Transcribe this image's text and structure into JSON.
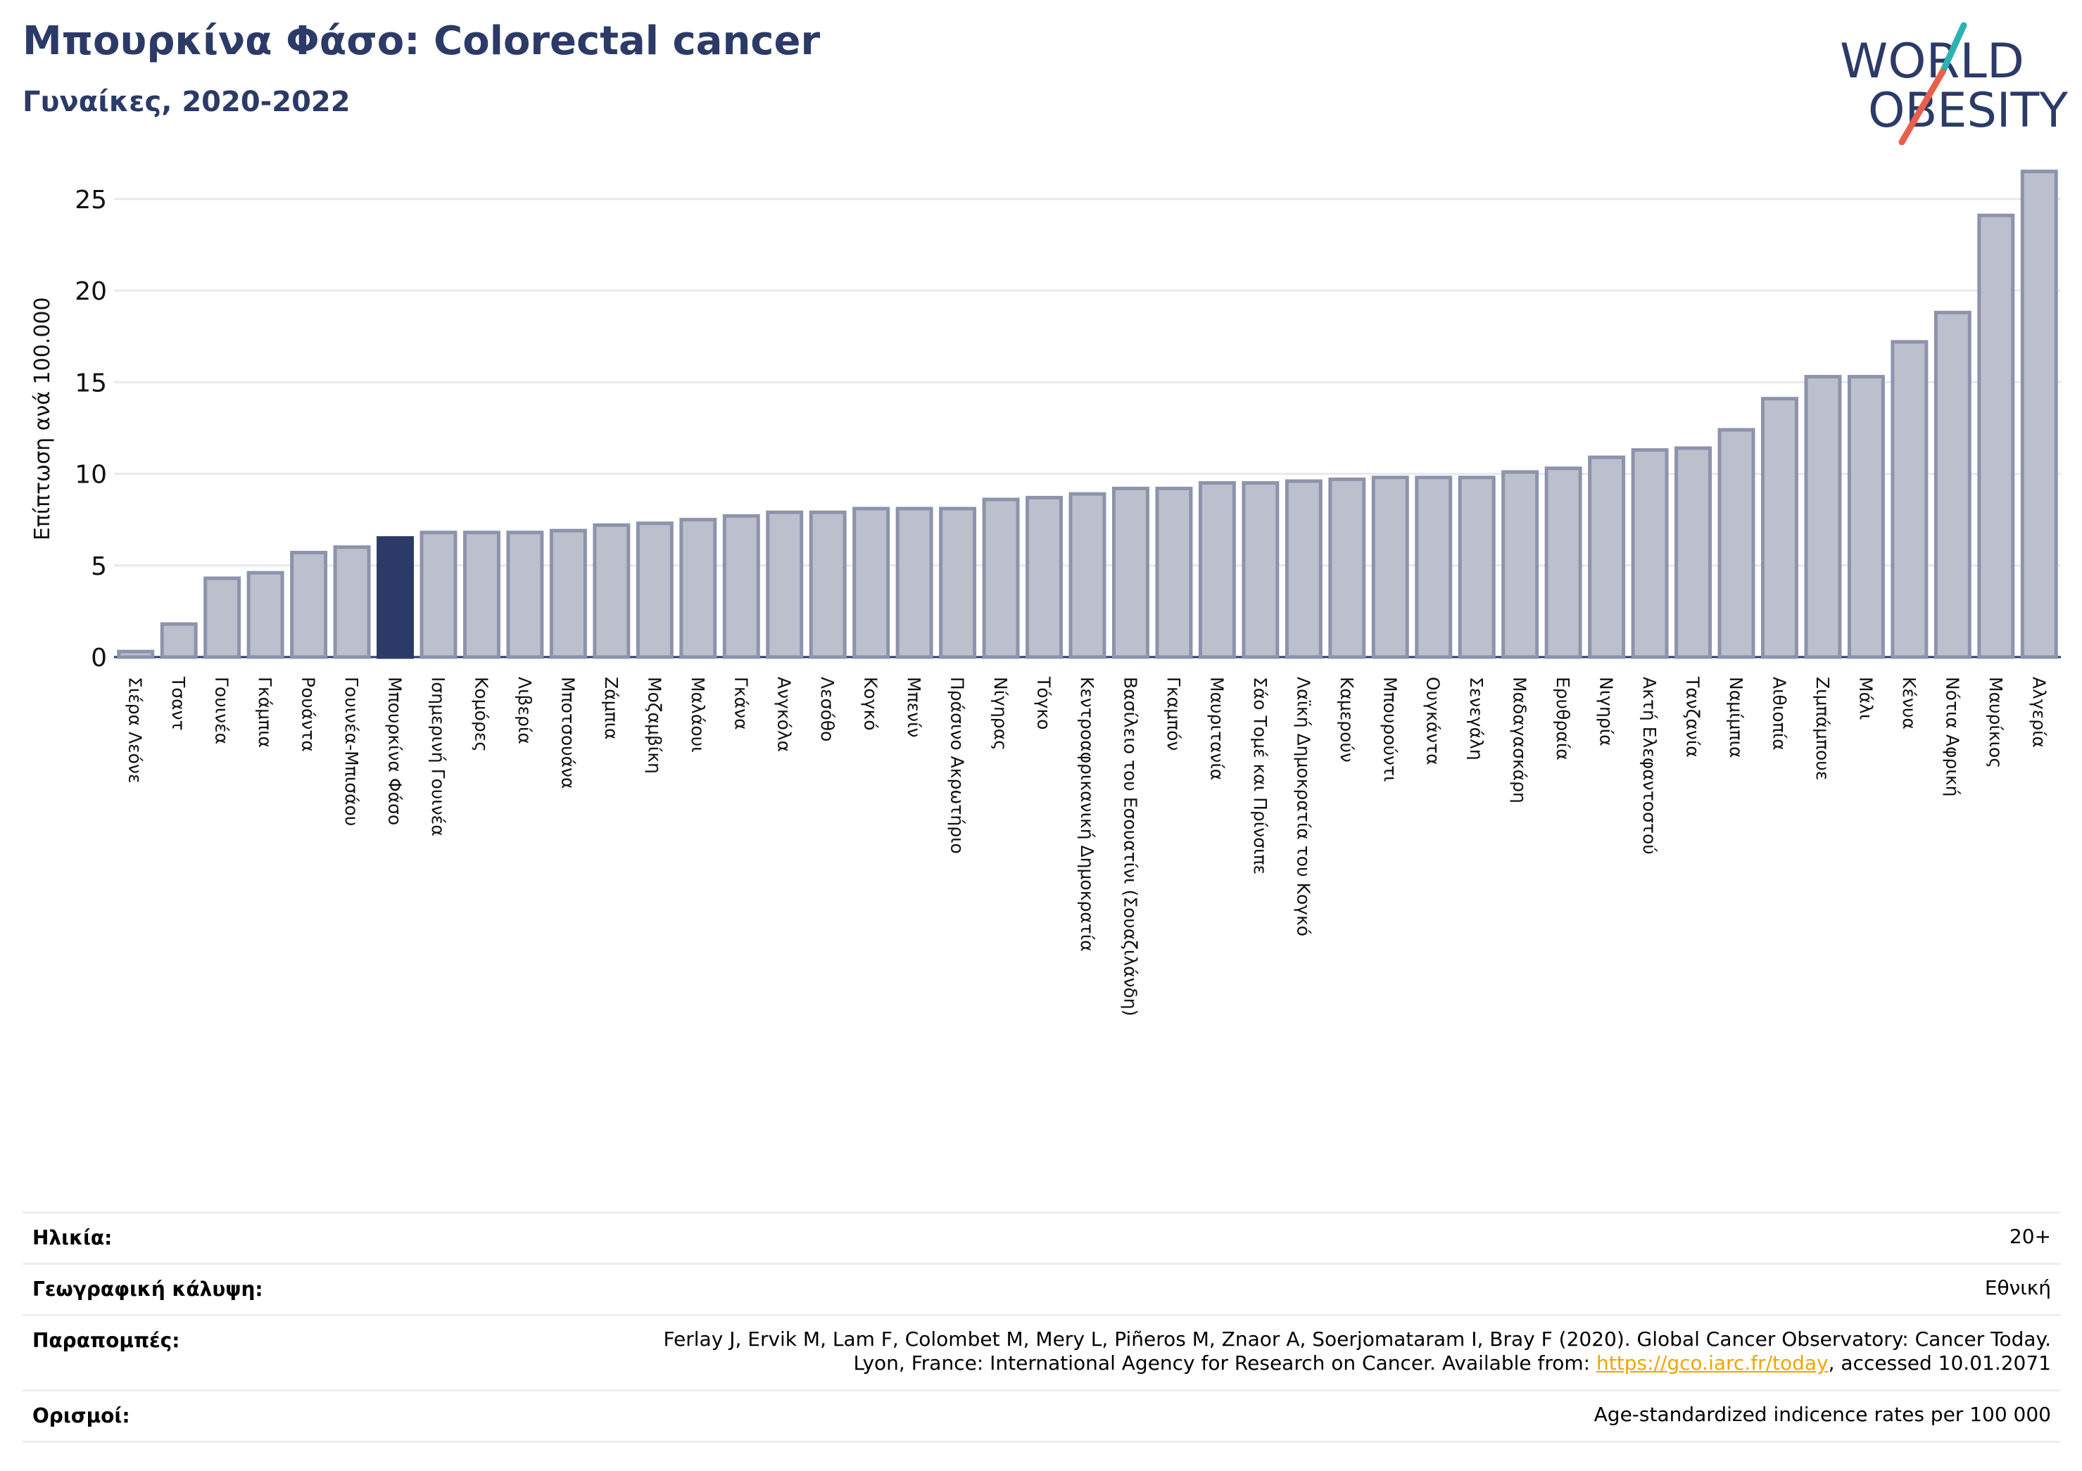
{
  "header": {
    "title": "Μπουρκίνα Φάσο: Colorectal cancer",
    "subtitle": "Γυναίκες, 2020-2022",
    "logo_line1": "WORLD",
    "logo_line2": "OBESITY"
  },
  "chart_data": {
    "type": "bar",
    "ylabel": "Επίπτωση ανά 100.000",
    "ylim": [
      0,
      27
    ],
    "yticks": [
      0,
      5,
      10,
      15,
      20,
      25
    ],
    "grid": true,
    "highlight": "Μπουρκίνα Φάσο",
    "categories": [
      "Σιέρα Λεόνε",
      "Τσαντ",
      "Γουινέα",
      "Γκάμπια",
      "Ρουάντα",
      "Γουινέα-Μπισάου",
      "Μπουρκίνα Φάσο",
      "Ισημερινή Γουινέα",
      "Κομόρες",
      "Λιβερία",
      "Μποτσουάνα",
      "Ζάμπια",
      "Μοζαμβίκη",
      "Μαλάουι",
      "Γκάνα",
      "Ανγκόλα",
      "Λεσόθο",
      "Κογκό",
      "Μπενίν",
      "Πράσινο Ακρωτήριο",
      "Νίγηρας",
      "Τόγκο",
      "Κεντροαφρικανική Δημοκρατία",
      "Βασίλειο του Εσουατίνι (Σουαζιλάνδη)",
      "Γκαμπόν",
      "Μαυριτανία",
      "Σάο Τομέ και Πρίνσιπε",
      "Λαϊκή Δημοκρατία του Κογκό",
      "Καμερούν",
      "Μπουρούντι",
      "Ουγκάντα",
      "Σενεγάλη",
      "Μαδαγασκάρη",
      "Ερυθραία",
      "Νιγηρία",
      "Ακτή Ελεφαντοστού",
      "Τανζανία",
      "Ναμίμπια",
      "Αιθιοπία",
      "Ζιμπάμπουε",
      "Μάλι",
      "Κένυα",
      "Νότια Αφρική",
      "Μαυρίκιος",
      "Αλγερία"
    ],
    "values": [
      0.3,
      1.8,
      4.3,
      4.6,
      5.7,
      6.0,
      6.5,
      6.8,
      6.8,
      6.8,
      6.9,
      7.2,
      7.3,
      7.5,
      7.7,
      7.9,
      7.9,
      8.1,
      8.1,
      8.1,
      8.6,
      8.7,
      8.9,
      9.2,
      9.2,
      9.5,
      9.5,
      9.6,
      9.7,
      9.8,
      9.8,
      9.8,
      10.1,
      10.3,
      10.9,
      11.3,
      11.4,
      12.4,
      14.1,
      15.3,
      15.3,
      17.2,
      18.8,
      24.1,
      26.5
    ]
  },
  "info": {
    "age_label": "Ηλικία:",
    "age_value": "20+",
    "coverage_label": "Γεωγραφική κάλυψη:",
    "coverage_value": "Εθνική",
    "refs_label": "Παραπομπές:",
    "refs_line1": "Ferlay J, Ervik M, Lam F, Colombet M, Mery L, Piñeros M, Znaor A, Soerjomataram I, Bray F (2020). Global Cancer Observatory: Cancer Today.",
    "refs_line2_prefix": "Lyon, France: International Agency for Research on Cancer. Available from: ",
    "refs_link": "https://gco.iarc.fr/today",
    "refs_line2_suffix": ", accessed 10.01.2071",
    "defs_label": "Ορισμοί:",
    "defs_value": "Age-standardized indicence rates per 100 000"
  },
  "colors": {
    "title": "#2b3a67",
    "bar_fill": "#bcbfcc",
    "bar_stroke": "#8d93ab",
    "highlight": "#2b3a67",
    "grid": "#e8e8ee",
    "logo_teal": "#2bb3b1",
    "logo_red": "#e8604c"
  }
}
